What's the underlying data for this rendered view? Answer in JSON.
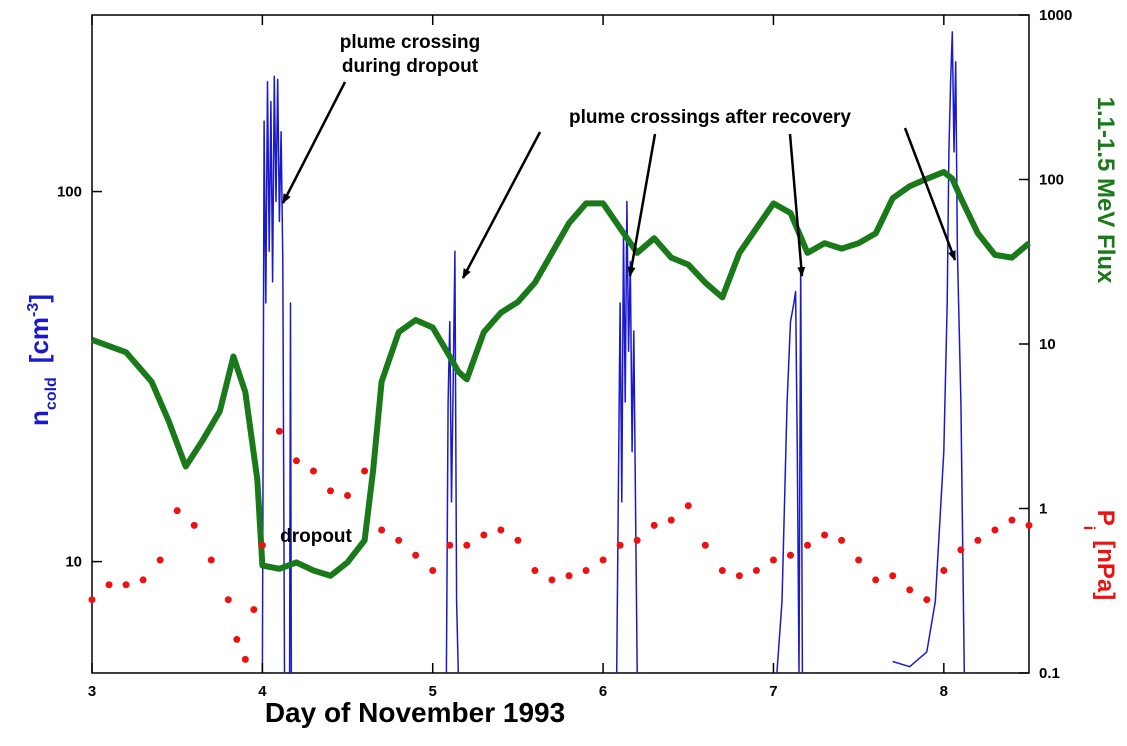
{
  "chart_data": {
    "type": "line",
    "x_label": "Day of November 1993",
    "y_label": {
      "base": "n",
      "sub": "cold",
      "unit": "[cm",
      "sup": "-3",
      "close": "]"
    },
    "y2_labels": [
      {
        "text": "1.1-1.5 MeV Flux",
        "color": "#1a7a1a"
      },
      {
        "base": "P",
        "sub": "i",
        "unit": "[nPa]",
        "color": "#ee1111"
      }
    ],
    "y_label_color": "#1a1acc",
    "xlim": [
      3,
      8.5
    ],
    "xticks": [
      3,
      4,
      5,
      6,
      7,
      8
    ],
    "ylim": [
      5,
      300
    ],
    "yticks": [
      10,
      100
    ],
    "y_log": true,
    "y2lim": [
      0.1,
      1000
    ],
    "y2ticks": [
      0.1,
      1,
      10,
      100,
      1000
    ],
    "y2_log": true,
    "annotations": [
      {
        "lines": [
          "plume crossing",
          "during dropout"
        ]
      },
      {
        "lines": [
          "plume crossings after recovery"
        ]
      },
      {
        "lines": [
          "dropout"
        ]
      }
    ],
    "series": [
      {
        "name": "n_cold",
        "color": "#1a1acc",
        "axis": "y",
        "mode": "line",
        "x": [
          4.0,
          4.01,
          4.02,
          4.03,
          4.04,
          4.05,
          4.06,
          4.07,
          4.08,
          4.09,
          4.1,
          4.11,
          4.12,
          4.13,
          4.14,
          4.16,
          4.165,
          4.17,
          4.18,
          5.08,
          5.09,
          5.1,
          5.11,
          5.12,
          5.13,
          5.14,
          5.15,
          5.16,
          6.08,
          6.1,
          6.11,
          6.12,
          6.13,
          6.14,
          6.15,
          6.16,
          6.17,
          6.18,
          6.2,
          6.21,
          7.02,
          7.05,
          7.08,
          7.1,
          7.12,
          7.13,
          7.14,
          7.15,
          7.16,
          7.17,
          7.18,
          7.7,
          7.8,
          7.9,
          7.95,
          8.0,
          8.02,
          8.03,
          8.04,
          8.05,
          8.06,
          8.07,
          8.08,
          8.1,
          8.12
        ],
        "values": [
          5,
          155,
          50,
          198,
          69,
          175,
          57,
          205,
          94,
          201,
          83,
          145,
          65,
          5,
          null,
          5,
          50,
          5,
          null,
          5,
          27,
          44.5,
          14.5,
          30.6,
          69,
          7.8,
          5,
          null,
          5,
          50,
          14.5,
          78,
          27,
          94,
          37,
          64.7,
          19.8,
          42,
          5,
          null,
          5,
          7.8,
          27,
          44.5,
          50,
          53.7,
          19.8,
          5,
          64.7,
          5,
          null,
          5.37,
          5.2,
          5.7,
          7.8,
          19.8,
          50,
          128,
          198,
          270,
          128,
          224,
          69,
          27,
          5
        ]
      },
      {
        "name": "1.1-1.5 MeV Flux",
        "color": "#1a7a1a",
        "axis": "y2",
        "mode": "line",
        "x": [
          3.0,
          3.2,
          3.35,
          3.45,
          3.55,
          3.65,
          3.75,
          3.83,
          3.9,
          3.97,
          4.0,
          4.1,
          4.2,
          4.3,
          4.4,
          4.5,
          4.6,
          4.65,
          4.7,
          4.8,
          4.9,
          5.0,
          5.05,
          5.1,
          5.15,
          5.2,
          5.3,
          5.4,
          5.5,
          5.6,
          5.7,
          5.8,
          5.9,
          6.0,
          6.1,
          6.2,
          6.3,
          6.4,
          6.5,
          6.6,
          6.7,
          6.8,
          6.9,
          7.0,
          7.1,
          7.2,
          7.3,
          7.4,
          7.5,
          7.6,
          7.7,
          7.8,
          7.9,
          8.0,
          8.05,
          8.1,
          8.2,
          8.3,
          8.4,
          8.5
        ],
        "values": [
          10.6,
          8.9,
          5.9,
          3.4,
          1.8,
          2.6,
          3.9,
          8.4,
          5.1,
          1.5,
          0.45,
          0.43,
          0.47,
          0.42,
          0.39,
          0.47,
          0.64,
          1.7,
          5.9,
          11.8,
          14,
          12.6,
          10.3,
          8.4,
          6.8,
          6.1,
          11.8,
          15.5,
          18,
          23.6,
          35.8,
          54.3,
          71.6,
          71.6,
          50.6,
          35.8,
          44,
          33.5,
          30.4,
          23.6,
          19.2,
          35.8,
          50.6,
          71.6,
          62.6,
          35.8,
          41,
          38,
          41,
          47,
          77,
          91,
          101,
          111,
          101,
          77,
          47,
          34.8,
          33.5,
          41
        ]
      },
      {
        "name": "P_i",
        "color": "#ee1111",
        "axis": "y2",
        "mode": "scatter",
        "x": [
          3.0,
          3.1,
          3.2,
          3.3,
          3.4,
          3.5,
          3.6,
          3.7,
          3.8,
          3.85,
          3.9,
          3.95,
          4.0,
          4.1,
          4.2,
          4.3,
          4.4,
          4.5,
          4.6,
          4.7,
          4.8,
          4.9,
          5.0,
          5.1,
          5.2,
          5.3,
          5.4,
          5.5,
          5.6,
          5.7,
          5.8,
          5.9,
          6.0,
          6.1,
          6.2,
          6.3,
          6.4,
          6.5,
          6.6,
          6.7,
          6.8,
          6.9,
          7.0,
          7.1,
          7.2,
          7.3,
          7.4,
          7.5,
          7.6,
          7.7,
          7.8,
          7.9,
          8.0,
          8.1,
          8.2,
          8.3,
          8.4,
          8.5
        ],
        "values": [
          0.279,
          0.344,
          0.344,
          0.368,
          0.486,
          0.97,
          0.79,
          0.486,
          0.279,
          0.16,
          0.121,
          0.243,
          0.598,
          2.95,
          1.95,
          1.69,
          1.28,
          1.2,
          1.69,
          0.74,
          0.64,
          0.52,
          0.42,
          0.598,
          0.598,
          0.69,
          0.74,
          0.64,
          0.42,
          0.368,
          0.39,
          0.42,
          0.486,
          0.598,
          0.64,
          0.79,
          0.85,
          1.04,
          0.598,
          0.42,
          0.39,
          0.42,
          0.486,
          0.52,
          0.598,
          0.69,
          0.64,
          0.486,
          0.368,
          0.39,
          0.32,
          0.279,
          0.42,
          0.56,
          0.64,
          0.74,
          0.85,
          0.79
        ]
      }
    ]
  }
}
